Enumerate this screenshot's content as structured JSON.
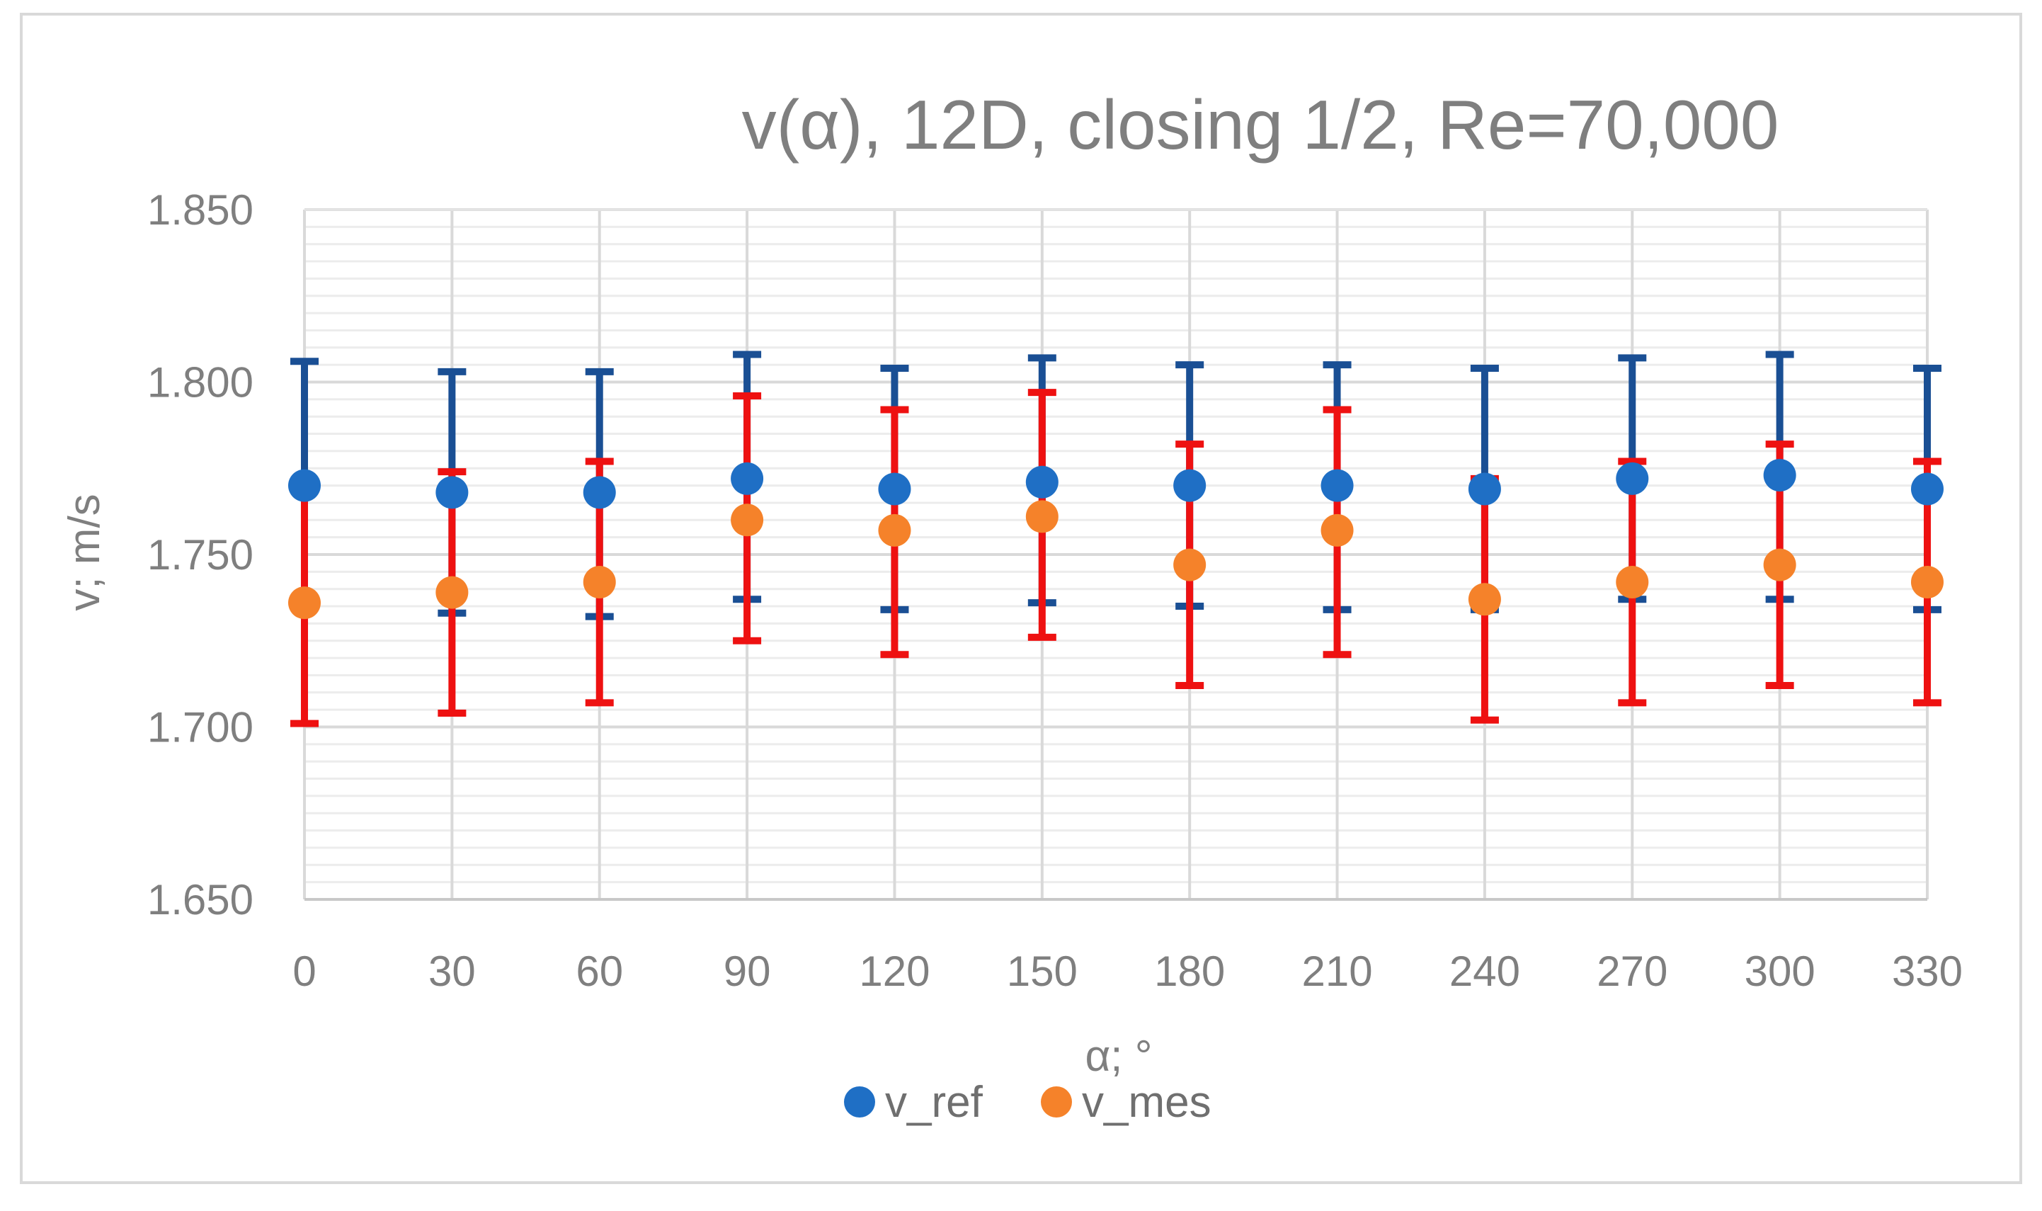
{
  "chart_data": {
    "type": "scatter",
    "title": "v(α), 12D, closing 1/2, Re=70,000",
    "xlabel": "α; °",
    "ylabel": "v; m/s",
    "ylim": [
      1.65,
      1.85
    ],
    "ytick_values": [
      1.65,
      1.7,
      1.75,
      1.8,
      1.85
    ],
    "ytick_labels": [
      "1.650",
      "1.700",
      "1.750",
      "1.800",
      "1.850"
    ],
    "x": [
      0,
      30,
      60,
      90,
      120,
      150,
      180,
      210,
      240,
      270,
      300,
      330
    ],
    "xtick_labels": [
      "0",
      "30",
      "60",
      "90",
      "120",
      "150",
      "180",
      "210",
      "240",
      "270",
      "300",
      "330"
    ],
    "grid": true,
    "legend_position": "bottom",
    "series": [
      {
        "name": "v_ref",
        "color": "#1f6fc5",
        "error_color": "#1a4f94",
        "values": [
          1.77,
          1.768,
          1.768,
          1.772,
          1.769,
          1.771,
          1.77,
          1.77,
          1.769,
          1.772,
          1.773,
          1.769
        ],
        "error_upper": [
          1.806,
          1.803,
          1.803,
          1.808,
          1.804,
          1.807,
          1.805,
          1.805,
          1.804,
          1.807,
          1.808,
          1.804
        ],
        "error_lower": [
          1.735,
          1.733,
          1.732,
          1.737,
          1.734,
          1.736,
          1.735,
          1.734,
          1.734,
          1.737,
          1.737,
          1.734
        ]
      },
      {
        "name": "v_mes",
        "color": "#f5822a",
        "error_color": "#ee1111",
        "values": [
          1.736,
          1.739,
          1.742,
          1.76,
          1.757,
          1.761,
          1.747,
          1.757,
          1.737,
          1.742,
          1.747,
          1.742
        ],
        "error_upper": [
          1.771,
          1.774,
          1.777,
          1.796,
          1.792,
          1.797,
          1.782,
          1.792,
          1.772,
          1.777,
          1.782,
          1.777
        ],
        "error_lower": [
          1.701,
          1.704,
          1.707,
          1.725,
          1.721,
          1.726,
          1.712,
          1.721,
          1.702,
          1.707,
          1.712,
          1.707
        ]
      }
    ]
  }
}
